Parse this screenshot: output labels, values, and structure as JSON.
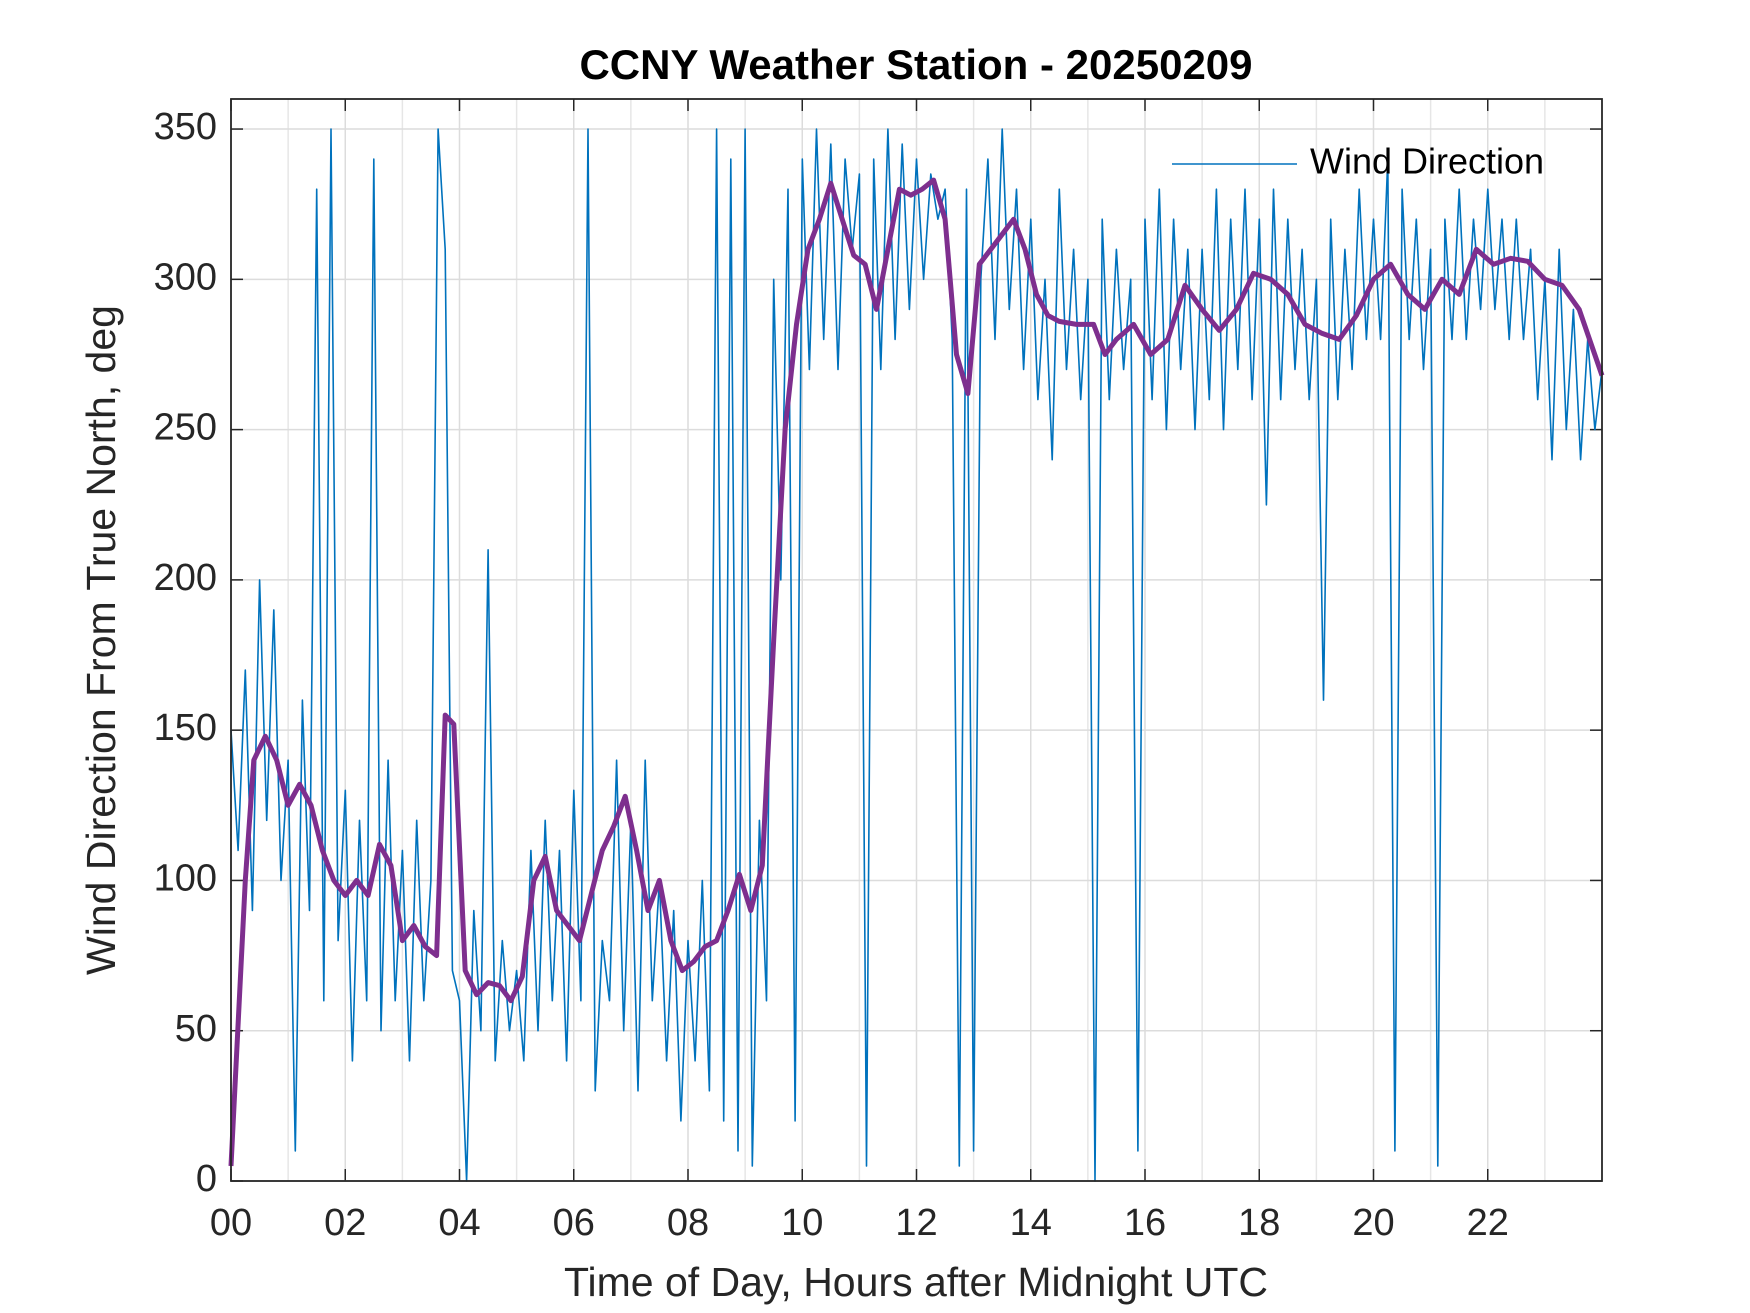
{
  "chart_data": {
    "type": "line",
    "title": "CCNY Weather Station - 20250209",
    "xlabel": "Time of Day, Hours after Midnight UTC",
    "ylabel": "Wind Direction From True North, deg",
    "xlim": [
      0,
      24
    ],
    "ylim": [
      0,
      360
    ],
    "xticks": [
      {
        "value": 0,
        "label": "00"
      },
      {
        "value": 2,
        "label": "02"
      },
      {
        "value": 4,
        "label": "04"
      },
      {
        "value": 6,
        "label": "06"
      },
      {
        "value": 8,
        "label": "08"
      },
      10,
      12,
      14,
      16,
      18,
      20,
      22
    ],
    "yticks": [
      0,
      50,
      100,
      150,
      200,
      250,
      300,
      350
    ],
    "grid": true,
    "minor_grid": true,
    "legend": "northeast",
    "series": [
      {
        "name": "Wind Direction",
        "color": "#0072bd",
        "x": [
          0,
          0.125,
          0.25,
          0.375,
          0.5,
          0.625,
          0.75,
          0.875,
          1,
          1.125,
          1.25,
          1.375,
          1.5,
          1.625,
          1.75,
          1.875,
          2,
          2.125,
          2.25,
          2.375,
          2.5,
          2.625,
          2.75,
          2.875,
          3,
          3.125,
          3.25,
          3.375,
          3.5,
          3.625,
          3.75,
          3.875,
          4,
          4.125,
          4.25,
          4.375,
          4.5,
          4.625,
          4.75,
          4.875,
          5,
          5.125,
          5.25,
          5.375,
          5.5,
          5.625,
          5.75,
          5.875,
          6,
          6.125,
          6.25,
          6.375,
          6.5,
          6.625,
          6.75,
          6.875,
          7,
          7.125,
          7.25,
          7.375,
          7.5,
          7.625,
          7.75,
          7.875,
          8,
          8.125,
          8.25,
          8.375,
          8.5,
          8.625,
          8.75,
          8.875,
          9,
          9.125,
          9.25,
          9.375,
          9.5,
          9.625,
          9.75,
          9.875,
          10,
          10.125,
          10.25,
          10.375,
          10.5,
          10.625,
          10.75,
          10.875,
          11,
          11.125,
          11.25,
          11.375,
          11.5,
          11.625,
          11.75,
          11.875,
          12,
          12.125,
          12.25,
          12.375,
          12.5,
          12.625,
          12.75,
          12.875,
          13,
          13.125,
          13.25,
          13.375,
          13.5,
          13.625,
          13.75,
          13.875,
          14,
          14.125,
          14.25,
          14.375,
          14.5,
          14.625,
          14.75,
          14.875,
          15,
          15.125,
          15.25,
          15.375,
          15.5,
          15.625,
          15.75,
          15.875,
          16,
          16.125,
          16.25,
          16.375,
          16.5,
          16.625,
          16.75,
          16.875,
          17,
          17.125,
          17.25,
          17.375,
          17.5,
          17.625,
          17.75,
          17.875,
          18,
          18.125,
          18.25,
          18.375,
          18.5,
          18.625,
          18.75,
          18.875,
          19,
          19.125,
          19.25,
          19.375,
          19.5,
          19.625,
          19.75,
          19.875,
          20,
          20.125,
          20.25,
          20.375,
          20.5,
          20.625,
          20.75,
          20.875,
          21,
          21.125,
          21.25,
          21.375,
          21.5,
          21.625,
          21.75,
          21.875,
          22,
          22.125,
          22.25,
          22.375,
          22.5,
          22.625,
          22.75,
          22.875,
          23,
          23.125,
          23.25,
          23.375,
          23.5,
          23.625,
          23.75,
          23.875,
          24
        ],
        "values": [
          150,
          110,
          170,
          90,
          200,
          120,
          190,
          100,
          140,
          10,
          160,
          90,
          330,
          60,
          350,
          80,
          130,
          40,
          120,
          60,
          340,
          50,
          140,
          60,
          110,
          40,
          120,
          60,
          100,
          350,
          310,
          70,
          60,
          0,
          90,
          50,
          210,
          40,
          80,
          50,
          70,
          40,
          110,
          50,
          120,
          60,
          110,
          40,
          130,
          60,
          350,
          30,
          80,
          60,
          140,
          50,
          120,
          30,
          140,
          60,
          100,
          40,
          90,
          20,
          80,
          40,
          100,
          30,
          350,
          20,
          340,
          10,
          350,
          5,
          120,
          60,
          300,
          200,
          330,
          20,
          340,
          270,
          350,
          280,
          345,
          270,
          340,
          310,
          335,
          5,
          340,
          270,
          350,
          280,
          345,
          290,
          340,
          300,
          335,
          320,
          330,
          280,
          5,
          330,
          10,
          300,
          340,
          280,
          350,
          290,
          330,
          270,
          320,
          260,
          300,
          240,
          330,
          270,
          310,
          260,
          300,
          0,
          320,
          260,
          310,
          270,
          300,
          10,
          320,
          260,
          330,
          250,
          320,
          270,
          310,
          250,
          310,
          260,
          330,
          250,
          320,
          270,
          330,
          260,
          320,
          225,
          330,
          260,
          320,
          270,
          310,
          260,
          300,
          160,
          320,
          260,
          310,
          270,
          330,
          280,
          320,
          280,
          340,
          10,
          330,
          280,
          320,
          270,
          310,
          5,
          320,
          280,
          330,
          280,
          320,
          290,
          330,
          290,
          320,
          280,
          320,
          280,
          310,
          260,
          300,
          240,
          310,
          250,
          290,
          240,
          280,
          250,
          270
        ]
      },
      {
        "color": "#7e2f8e",
        "x": [
          0,
          0.25,
          0.4,
          0.6,
          0.8,
          1.0,
          1.2,
          1.4,
          1.6,
          1.8,
          2.0,
          2.2,
          2.4,
          2.6,
          2.8,
          3.0,
          3.2,
          3.4,
          3.6,
          3.75,
          3.9,
          4.1,
          4.3,
          4.5,
          4.7,
          4.9,
          5.1,
          5.3,
          5.5,
          5.7,
          5.9,
          6.1,
          6.3,
          6.5,
          6.7,
          6.9,
          7.1,
          7.3,
          7.5,
          7.7,
          7.9,
          8.1,
          8.3,
          8.5,
          8.7,
          8.9,
          9.1,
          9.3,
          9.5,
          9.7,
          9.9,
          10.1,
          10.3,
          10.5,
          10.7,
          10.9,
          11.1,
          11.3,
          11.5,
          11.7,
          11.9,
          12.1,
          12.3,
          12.5,
          12.7,
          12.9,
          13.1,
          13.3,
          13.5,
          13.7,
          13.9,
          14.1,
          14.3,
          14.5,
          14.8,
          15.1,
          15.3,
          15.5,
          15.8,
          16.1,
          16.4,
          16.7,
          17.0,
          17.3,
          17.6,
          17.9,
          18.2,
          18.5,
          18.8,
          19.1,
          19.4,
          19.7,
          20.0,
          20.3,
          20.6,
          20.9,
          21.2,
          21.5,
          21.8,
          22.1,
          22.4,
          22.7,
          23.0,
          23.3,
          23.6,
          24.0
        ],
        "values": [
          5,
          100,
          140,
          148,
          140,
          125,
          132,
          125,
          110,
          100,
          95,
          100,
          95,
          112,
          105,
          80,
          85,
          78,
          75,
          155,
          152,
          70,
          62,
          66,
          65,
          60,
          68,
          100,
          108,
          90,
          85,
          80,
          95,
          110,
          118,
          128,
          110,
          90,
          100,
          80,
          70,
          73,
          78,
          80,
          90,
          102,
          90,
          105,
          180,
          250,
          285,
          310,
          320,
          332,
          320,
          308,
          305,
          290,
          310,
          330,
          328,
          330,
          333,
          320,
          275,
          262,
          305,
          310,
          315,
          320,
          310,
          295,
          288,
          286,
          285,
          285,
          275,
          280,
          285,
          275,
          280,
          298,
          290,
          283,
          290,
          302,
          300,
          295,
          285,
          282,
          280,
          288,
          300,
          305,
          295,
          290,
          300,
          295,
          310,
          305,
          307,
          306,
          300,
          298,
          290,
          268
        ]
      }
    ]
  }
}
